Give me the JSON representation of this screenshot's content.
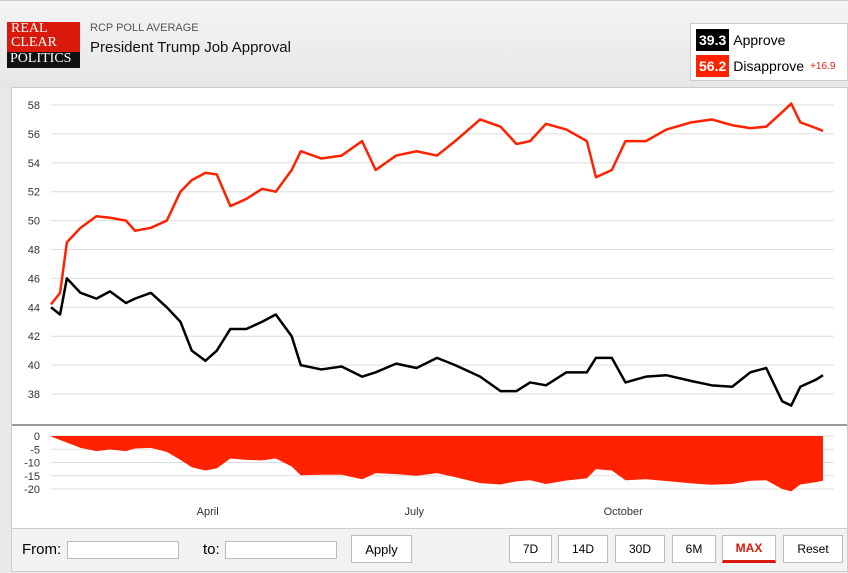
{
  "header": {
    "logo": [
      "REAL",
      "CLEAR",
      "POLITICS"
    ],
    "subtitle": "RCP POLL AVERAGE",
    "title": "President Trump Job Approval"
  },
  "legend": {
    "approve_value": "39.3",
    "approve_label": "Approve",
    "disapprove_value": "56.2",
    "disapprove_label": "Disapprove",
    "spread": "+16.9"
  },
  "colors": {
    "approve": "#000000",
    "disapprove": "#ff2200",
    "spread_fill": "#ff2200"
  },
  "controls": {
    "from_label": "From:",
    "to_label": "to:",
    "from_value": "",
    "to_value": "",
    "apply": "Apply",
    "ranges": [
      "7D",
      "14D",
      "30D",
      "6M",
      "MAX",
      "Reset"
    ],
    "selected": "MAX"
  },
  "chart_data": [
    {
      "type": "line",
      "x_type": "date",
      "yticks": [
        38,
        40,
        42,
        44,
        46,
        48,
        50,
        52,
        54,
        56,
        58
      ],
      "ylim": [
        37,
        59
      ],
      "grid": true,
      "x": [
        "2017-01-22",
        "2017-01-26",
        "2017-01-29",
        "2017-02-04",
        "2017-02-11",
        "2017-02-17",
        "2017-02-24",
        "2017-02-28",
        "2017-03-07",
        "2017-03-14",
        "2017-03-20",
        "2017-03-25",
        "2017-03-31",
        "2017-04-05",
        "2017-04-11",
        "2017-04-18",
        "2017-04-25",
        "2017-05-01",
        "2017-05-08",
        "2017-05-12",
        "2017-05-21",
        "2017-05-30",
        "2017-06-08",
        "2017-06-14",
        "2017-06-23",
        "2017-07-02",
        "2017-07-11",
        "2017-07-19",
        "2017-07-30",
        "2017-08-08",
        "2017-08-15",
        "2017-08-21",
        "2017-08-28",
        "2017-09-06",
        "2017-09-15",
        "2017-09-19",
        "2017-09-26",
        "2017-10-02",
        "2017-10-11",
        "2017-10-20",
        "2017-10-31",
        "2017-11-09",
        "2017-11-18",
        "2017-11-26",
        "2017-12-03",
        "2017-12-10",
        "2017-12-14",
        "2017-12-18",
        "2017-12-25",
        "2017-12-28"
      ],
      "series": [
        {
          "name": "Approve",
          "values": [
            44,
            43.5,
            46,
            45,
            44.6,
            45.1,
            44.3,
            44.6,
            45,
            44,
            43,
            41,
            40.3,
            41,
            42.5,
            42.5,
            43,
            43.5,
            42,
            40,
            39.7,
            39.9,
            39.2,
            39.5,
            40.1,
            39.8,
            40.5,
            40,
            39.2,
            38.2,
            38.2,
            38.8,
            38.6,
            39.5,
            39.5,
            40.5,
            40.5,
            38.8,
            39.2,
            39.3,
            38.9,
            38.6,
            38.5,
            39.5,
            39.8,
            37.5,
            37.2,
            38.5,
            39,
            39.3
          ]
        },
        {
          "name": "Disapprove",
          "values": [
            44.2,
            45,
            48.5,
            49.5,
            50.3,
            50.2,
            50,
            49.3,
            49.5,
            50,
            52,
            52.8,
            53.3,
            53.2,
            51,
            51.5,
            52.2,
            52,
            53.5,
            54.8,
            54.3,
            54.5,
            55.5,
            53.5,
            54.5,
            54.8,
            54.5,
            55.5,
            57,
            56.5,
            55.3,
            55.5,
            56.7,
            56.3,
            55.5,
            53,
            53.5,
            55.5,
            55.5,
            56.3,
            56.8,
            57,
            56.6,
            56.4,
            56.5,
            57.5,
            58.1,
            56.8,
            56.4,
            56.2
          ]
        }
      ]
    },
    {
      "type": "area",
      "description_series": "Spread (Approve - Disapprove)",
      "yticks": [
        0,
        -5,
        -10,
        -15,
        -20
      ],
      "ylim": [
        -21,
        0
      ],
      "xticks": [
        "April",
        "July",
        "October"
      ],
      "xtick_dates": [
        "2017-04-01",
        "2017-07-01",
        "2017-10-01"
      ]
    }
  ]
}
